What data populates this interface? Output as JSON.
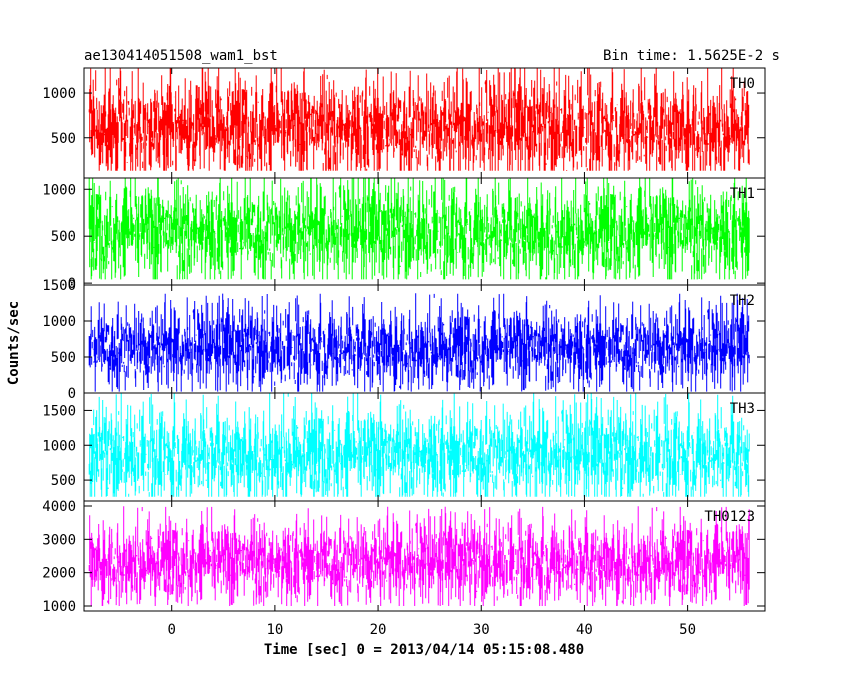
{
  "chart_data": {
    "type": "line",
    "title": "ae130414051508_wam1_bst",
    "subtitle": "Bin time: 1.5625E-2 s",
    "xlabel": "Time [sec] 0 = 2013/04/14 05:15:08.480",
    "ylabel": "Counts/sec",
    "xlim": [
      -8.5,
      57.5
    ],
    "x_ticks": [
      0,
      10,
      20,
      30,
      40,
      50
    ],
    "x_tick_labels": [
      "0",
      "10",
      "20",
      "30",
      "40",
      "50"
    ],
    "x_data_range": [
      -8.0,
      56.0
    ],
    "bin_time": 0.015625,
    "grid": false,
    "legend": "none",
    "panels": [
      {
        "name": "TH0",
        "color": "#ff0000",
        "ylim": [
          50,
          1280
        ],
        "y_ticks": [
          500,
          1000
        ],
        "y_tick_labels": [
          "500",
          "1000"
        ],
        "trace": {
          "base": 620,
          "spread": 250,
          "floor": 130,
          "ceiling": 1280
        }
      },
      {
        "name": "TH1",
        "color": "#00ff00",
        "ylim": [
          -20,
          1120
        ],
        "y_ticks": [
          0,
          500,
          1000
        ],
        "y_tick_labels": [
          "0",
          "500",
          "1000"
        ],
        "trace": {
          "base": 560,
          "spread": 230,
          "floor": 40,
          "ceiling": 1120
        }
      },
      {
        "name": "TH2",
        "color": "#0000ff",
        "ylim": [
          0,
          1500
        ],
        "y_ticks": [
          0,
          500,
          1000,
          1500
        ],
        "y_tick_labels": [
          "0",
          "500",
          "1000",
          "1500"
        ],
        "trace": {
          "base": 640,
          "spread": 250,
          "floor": 20,
          "ceiling": 1450
        }
      },
      {
        "name": "TH3",
        "color": "#00ffff",
        "ylim": [
          200,
          1750
        ],
        "y_ticks": [
          500,
          1000,
          1500
        ],
        "y_tick_labels": [
          "500",
          "1000",
          "1500"
        ],
        "trace": {
          "base": 880,
          "spread": 300,
          "floor": 260,
          "ceiling": 1750
        }
      },
      {
        "name": "TH0123",
        "color": "#ff00ff",
        "ylim": [
          850,
          4150
        ],
        "y_ticks": [
          1000,
          2000,
          3000,
          4000
        ],
        "y_tick_labels": [
          "1000",
          "2000",
          "3000",
          "4000"
        ],
        "trace": {
          "base": 2350,
          "spread": 550,
          "floor": 1000,
          "ceiling": 4150
        }
      }
    ]
  }
}
